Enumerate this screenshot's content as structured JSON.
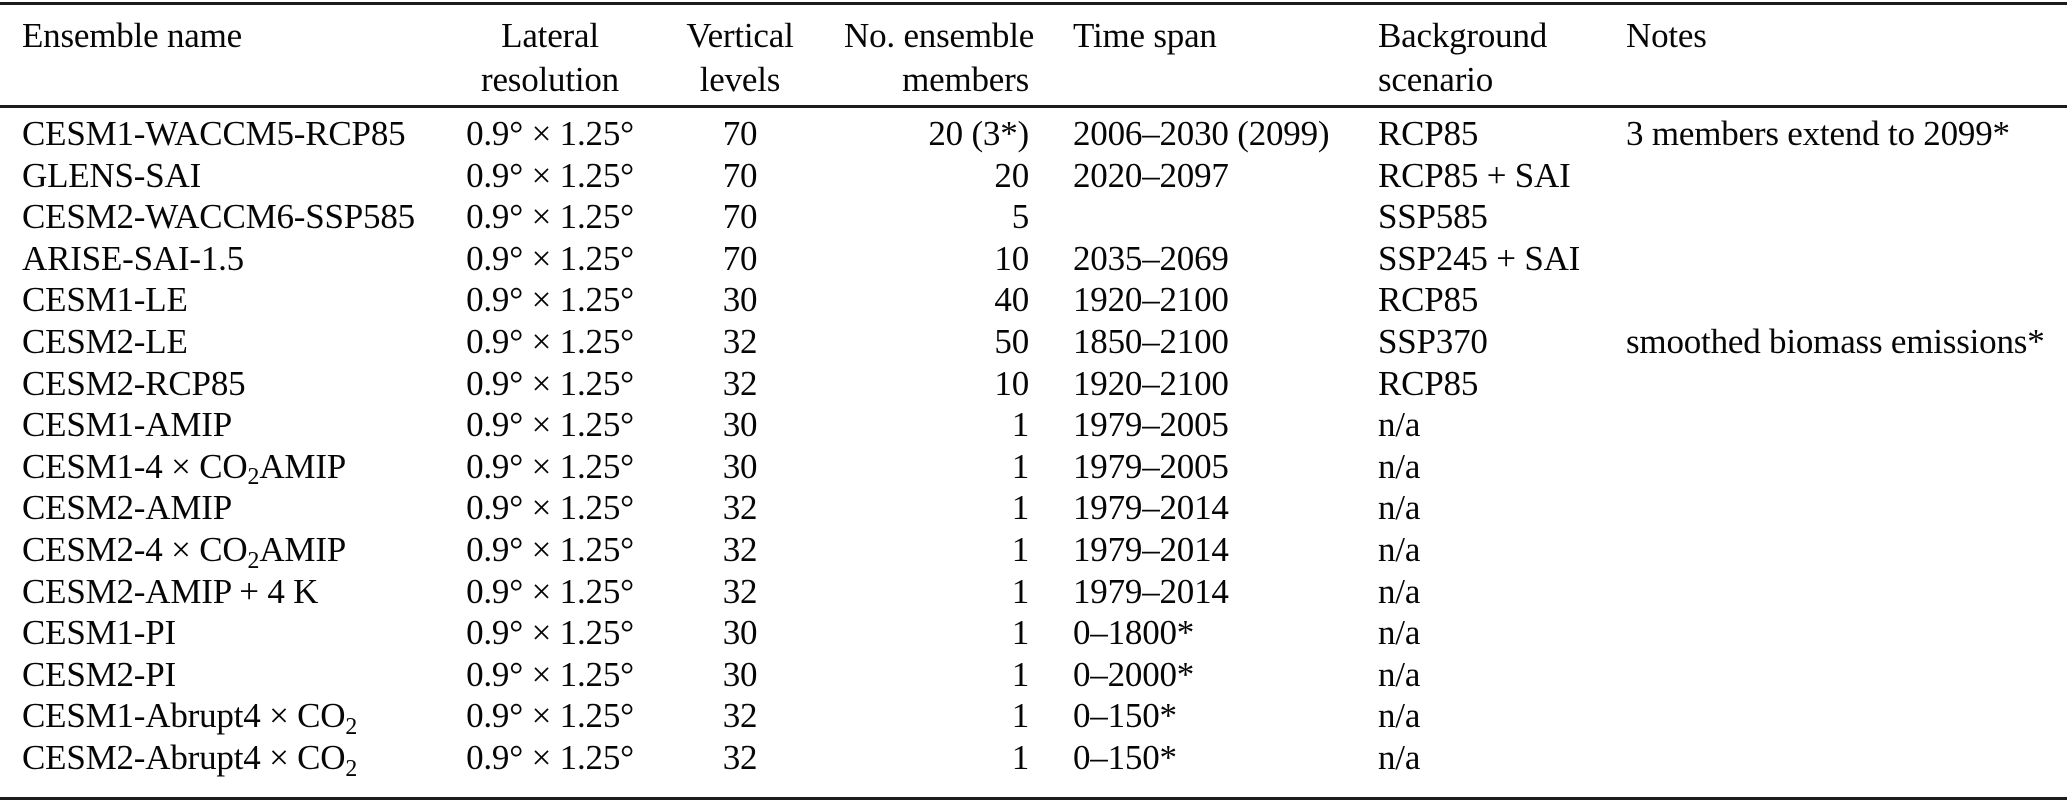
{
  "table": {
    "columns": [
      {
        "label": "Ensemble name",
        "align": "left"
      },
      {
        "label": "Lateral\nresolution",
        "align": "center"
      },
      {
        "label": "Vertical\nlevels",
        "align": "center"
      },
      {
        "label": "No. ensemble\nmembers",
        "align": "right"
      },
      {
        "label": "Time span",
        "align": "left"
      },
      {
        "label": "Background\nscenario",
        "align": "left"
      },
      {
        "label": "Notes",
        "align": "left"
      }
    ],
    "rows": [
      {
        "name": [
          {
            "text": "CESM1-WACCM5-RCP85"
          }
        ],
        "resolution": "0.9° × 1.25°",
        "levels": "70",
        "members": "20 (3*)",
        "timespan": "2006–2030 (2099)",
        "scenario": "RCP85",
        "notes": "3 members extend to 2099*"
      },
      {
        "name": [
          {
            "text": "GLENS-SAI"
          }
        ],
        "resolution": "0.9° × 1.25°",
        "levels": "70",
        "members": "20",
        "timespan": "2020–2097",
        "scenario": "RCP85 + SAI",
        "notes": ""
      },
      {
        "name": [
          {
            "text": "CESM2-WACCM6-SSP585"
          }
        ],
        "resolution": "0.9° × 1.25°",
        "levels": "70",
        "members": "5",
        "timespan": "",
        "scenario": "SSP585",
        "notes": ""
      },
      {
        "name": [
          {
            "text": "ARISE-SAI-1.5"
          }
        ],
        "resolution": "0.9° × 1.25°",
        "levels": "70",
        "members": "10",
        "timespan": "2035–2069",
        "scenario": "SSP245 + SAI",
        "notes": ""
      },
      {
        "name": [
          {
            "text": "CESM1-LE"
          }
        ],
        "resolution": "0.9° × 1.25°",
        "levels": "30",
        "members": "40",
        "timespan": "1920–2100",
        "scenario": "RCP85",
        "notes": ""
      },
      {
        "name": [
          {
            "text": "CESM2-LE"
          }
        ],
        "resolution": "0.9° × 1.25°",
        "levels": "32",
        "members": "50",
        "timespan": "1850–2100",
        "scenario": "SSP370",
        "notes": "smoothed biomass emissions*"
      },
      {
        "name": [
          {
            "text": "CESM2-RCP85"
          }
        ],
        "resolution": "0.9° × 1.25°",
        "levels": "32",
        "members": "10",
        "timespan": "1920–2100",
        "scenario": "RCP85",
        "notes": ""
      },
      {
        "name": [
          {
            "text": "CESM1-AMIP"
          }
        ],
        "resolution": "0.9° × 1.25°",
        "levels": "30",
        "members": "1",
        "timespan": "1979–2005",
        "scenario": "n/a",
        "notes": ""
      },
      {
        "name": [
          {
            "text": "CESM1-4 × CO"
          },
          {
            "text": "2",
            "sub": true
          },
          {
            "text": "AMIP"
          }
        ],
        "resolution": "0.9° × 1.25°",
        "levels": "30",
        "members": "1",
        "timespan": "1979–2005",
        "scenario": "n/a",
        "notes": ""
      },
      {
        "name": [
          {
            "text": "CESM2-AMIP"
          }
        ],
        "resolution": "0.9° × 1.25°",
        "levels": "32",
        "members": "1",
        "timespan": "1979–2014",
        "scenario": "n/a",
        "notes": ""
      },
      {
        "name": [
          {
            "text": "CESM2-4 × CO"
          },
          {
            "text": "2",
            "sub": true
          },
          {
            "text": "AMIP"
          }
        ],
        "resolution": "0.9° × 1.25°",
        "levels": "32",
        "members": "1",
        "timespan": "1979–2014",
        "scenario": "n/a",
        "notes": ""
      },
      {
        "name": [
          {
            "text": "CESM2-AMIP + 4 K"
          }
        ],
        "resolution": "0.9° × 1.25°",
        "levels": "32",
        "members": "1",
        "timespan": "1979–2014",
        "scenario": "n/a",
        "notes": ""
      },
      {
        "name": [
          {
            "text": "CESM1-PI"
          }
        ],
        "resolution": "0.9° × 1.25°",
        "levels": "30",
        "members": "1",
        "timespan": "0–1800*",
        "scenario": "n/a",
        "notes": ""
      },
      {
        "name": [
          {
            "text": "CESM2-PI"
          }
        ],
        "resolution": "0.9° × 1.25°",
        "levels": "30",
        "members": "1",
        "timespan": "0–2000*",
        "scenario": "n/a",
        "notes": ""
      },
      {
        "name": [
          {
            "text": "CESM1-Abrupt4 × CO"
          },
          {
            "text": "2",
            "sub": true
          }
        ],
        "resolution": "0.9° × 1.25°",
        "levels": "32",
        "members": "1",
        "timespan": "0–150*",
        "scenario": "n/a",
        "notes": ""
      },
      {
        "name": [
          {
            "text": "CESM2-Abrupt4 × CO"
          },
          {
            "text": "2",
            "sub": true
          }
        ],
        "resolution": "0.9° × 1.25°",
        "levels": "32",
        "members": "1",
        "timespan": "0–150*",
        "scenario": "n/a",
        "notes": ""
      }
    ]
  }
}
